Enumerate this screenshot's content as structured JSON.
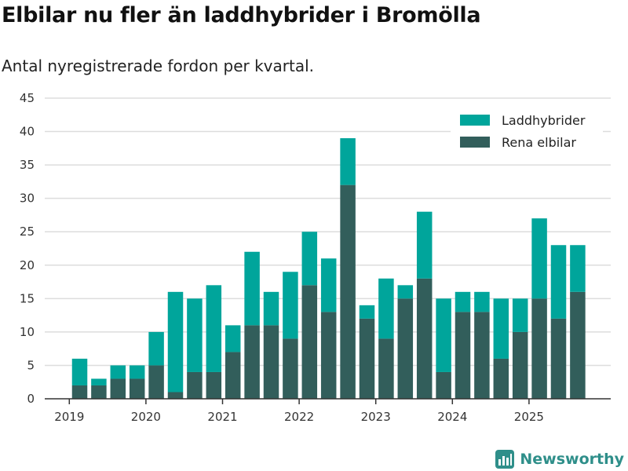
{
  "header": {
    "title": "Elbilar nu fler än laddhybrider i Bromölla",
    "subtitle": "Antal nyregistrerade fordon per kvartal."
  },
  "brand": {
    "name": "Newsworthy"
  },
  "colors": {
    "laddhybrider": "#00a59b",
    "rena_elbilar": "#325e5b",
    "grid": "#dddddd",
    "axis": "#333333"
  },
  "chart_data": {
    "type": "bar",
    "stacked": true,
    "title": "Elbilar nu fler än laddhybrider i Bromölla",
    "subtitle": "Antal nyregistrerade fordon per kvartal.",
    "xlabel": "",
    "ylabel": "",
    "ylim": [
      0,
      45
    ],
    "yticks": [
      0,
      5,
      10,
      15,
      20,
      25,
      30,
      35,
      40,
      45
    ],
    "xtick_labels": [
      "2019",
      "2020",
      "2021",
      "2022",
      "2023",
      "2024",
      "2025"
    ],
    "legend_position": "top-right",
    "categories": [
      "2019 Q1",
      "2019 Q2",
      "2019 Q3",
      "2019 Q4",
      "2020 Q1",
      "2020 Q2",
      "2020 Q3",
      "2020 Q4",
      "2021 Q1",
      "2021 Q2",
      "2021 Q3",
      "2021 Q4",
      "2022 Q1",
      "2022 Q2",
      "2022 Q3",
      "2022 Q4",
      "2023 Q1",
      "2023 Q2",
      "2023 Q3",
      "2023 Q4",
      "2024 Q1",
      "2024 Q2",
      "2024 Q3",
      "2024 Q4",
      "2025 Q1",
      "2025 Q2",
      "2025 Q3",
      "2025 Q4"
    ],
    "series": [
      {
        "name": "Rena elbilar",
        "color": "#325e5b",
        "values": [
          2,
          2,
          3,
          3,
          5,
          1,
          4,
          4,
          7,
          11,
          11,
          9,
          17,
          13,
          32,
          12,
          9,
          15,
          18,
          4,
          13,
          13,
          6,
          10,
          15,
          12,
          16,
          0
        ]
      },
      {
        "name": "Laddhybrider",
        "color": "#00a59b",
        "values": [
          4,
          1,
          2,
          2,
          5,
          15,
          11,
          13,
          4,
          11,
          5,
          10,
          8,
          8,
          7,
          2,
          9,
          2,
          10,
          11,
          3,
          3,
          9,
          5,
          12,
          11,
          7,
          0
        ]
      }
    ]
  }
}
